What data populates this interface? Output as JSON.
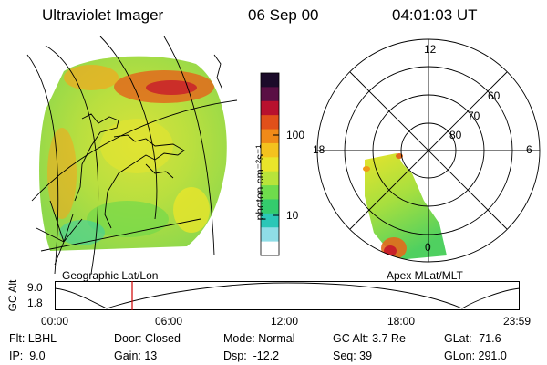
{
  "header": {
    "title": "Ultraviolet Imager",
    "date": "06 Sep 00",
    "time": "04:01:03 UT"
  },
  "colorbar": {
    "unit_label": "photon cm⁻²s⁻¹",
    "tick_labels": [
      "100",
      "10"
    ],
    "colors": [
      "#1b0b2a",
      "#5a0f44",
      "#b8112e",
      "#e1501a",
      "#f08a18",
      "#f4c21e",
      "#e9e52a",
      "#b8e43a",
      "#6fdc4c",
      "#34cc6d",
      "#2bc7b7",
      "#8fdde6",
      "#ffffff"
    ]
  },
  "geo_panel": {
    "caption": "Geographic Lat/Lon"
  },
  "polar_panel": {
    "caption": "Apex MLat/MLT",
    "mlt_labels": [
      "12",
      "18",
      "6",
      "0"
    ],
    "lat_labels": [
      "60",
      "70",
      "80"
    ]
  },
  "altitude_plot": {
    "axis_label": "GC Alt",
    "y_ticks": [
      "9.0",
      "1.8"
    ],
    "x_ticks": [
      "00:00",
      "06:00",
      "12:00",
      "18:00",
      "23:59"
    ],
    "current_time_marker": "04:01",
    "marker_color": "#d00000"
  },
  "info": {
    "row1": [
      "Flt: LBHL",
      "Door: Closed",
      "Mode: Normal",
      "GC Alt: 3.7 Re",
      "GLat: -71.6"
    ],
    "row2": [
      "IP:  9.0",
      "Gain: 13",
      "Dsp:  -12.2",
      "Seq: 39",
      "GLon: 291.0"
    ]
  }
}
